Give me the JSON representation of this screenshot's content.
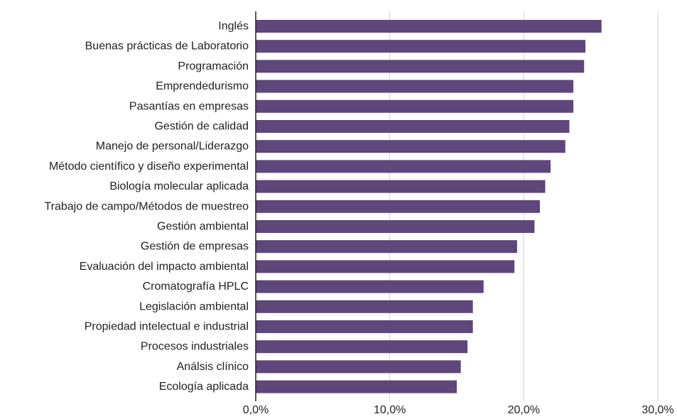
{
  "chart_data": {
    "type": "bar",
    "orientation": "horizontal",
    "categories": [
      "Inglés",
      "Buenas prácticas de Laboratorio",
      "Programación",
      "Emprendedurismo",
      "Pasantías en empresas",
      "Gestión de calidad",
      "Manejo de personal/Liderazgo",
      "Método científico y diseño experimental",
      "Biología molecular aplicada",
      "Trabajo de campo/Métodos de muestreo",
      "Gestión ambiental",
      "Gestión de empresas",
      "Evaluación del impacto ambiental",
      "Cromatografía HPLC",
      "Legislación ambiental",
      "Propiedad intelectual e industrial",
      "Procesos industriales",
      "Análsis clínico",
      "Ecología aplicada"
    ],
    "values": [
      25.8,
      24.6,
      24.5,
      23.7,
      23.7,
      23.4,
      23.1,
      22.0,
      21.6,
      21.2,
      20.8,
      19.5,
      19.3,
      17.0,
      16.2,
      16.2,
      15.8,
      15.3,
      15.0
    ],
    "xlim": [
      0,
      30
    ],
    "xticks": [
      0,
      10,
      20,
      30
    ],
    "xtick_labels": [
      "0,0%",
      "10,0%",
      "20,0%",
      "30,0%"
    ],
    "grid": "vertical",
    "legend": "none",
    "bar_color": "#5e477b",
    "grid_color": "#d0d0d0",
    "axis_color": "#222222"
  }
}
